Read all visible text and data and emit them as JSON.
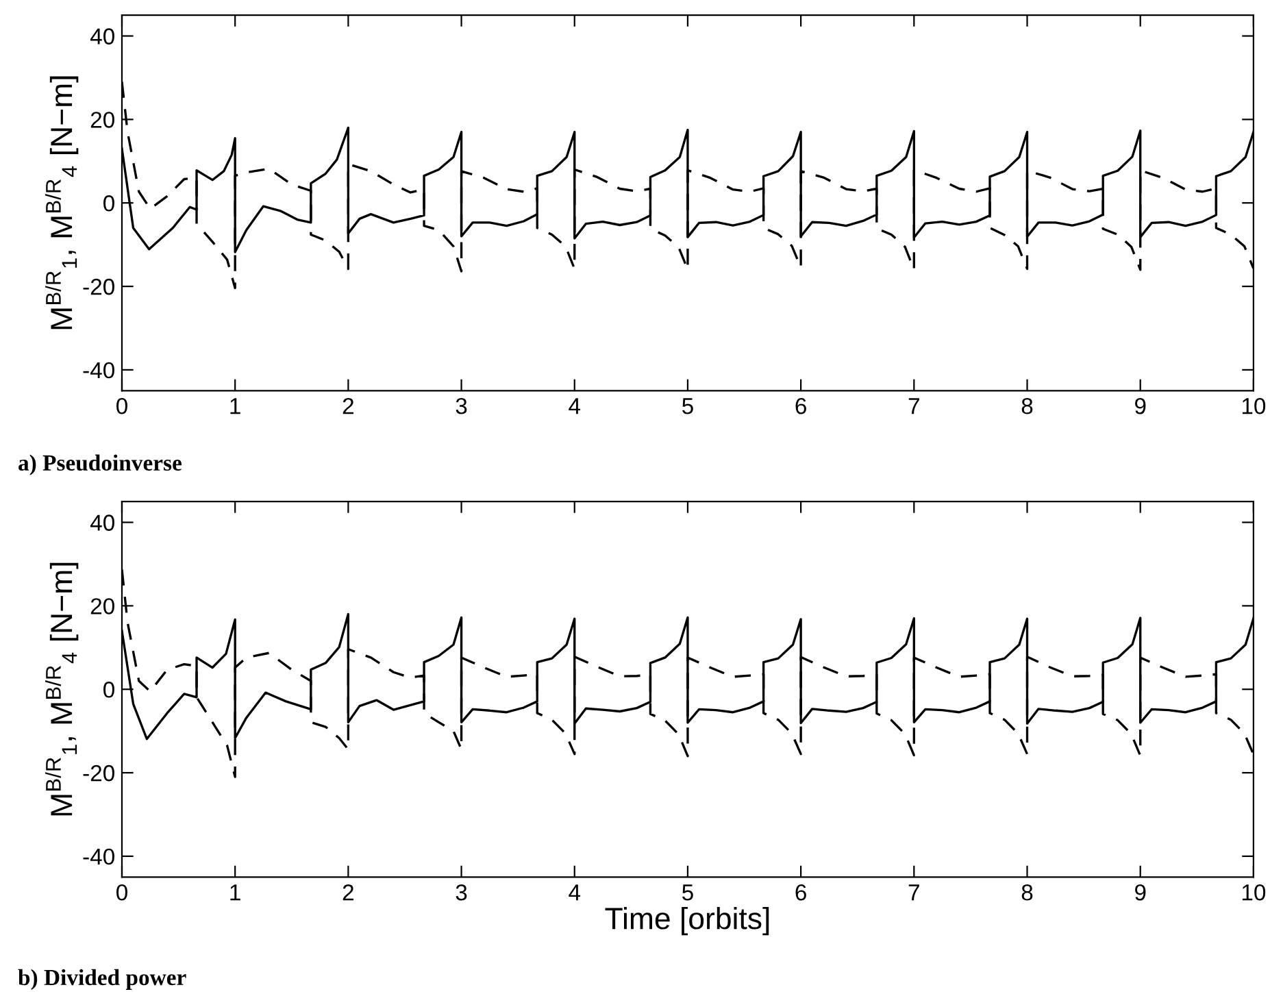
{
  "chart_data": [
    {
      "type": "line",
      "ylabel": "M$^{B/R}$$_{1}$, M$^{B/R}$$_{4}$ [N−m]",
      "annotations": [
        "a) Pseudoinverse"
      ],
      "xlim": [
        0,
        10
      ],
      "xticks": [
        0,
        1,
        2,
        3,
        4,
        5,
        6,
        7,
        8,
        9,
        10
      ],
      "ylim": [
        -45,
        45
      ],
      "yticks": [
        -40,
        -20,
        0,
        20,
        40
      ],
      "grid": false,
      "marker": "none",
      "series": [
        {
          "color": "#000000",
          "line_style": "solid",
          "x": [
            0,
            0.1,
            0.24,
            0.45,
            0.6,
            0.66,
            0.66,
            0.8,
            0.9,
            0.97,
            1,
            1,
            1.1,
            1.25,
            1.4,
            1.55,
            1.67,
            1.67,
            1.8,
            1.9,
            2,
            2,
            2.1,
            2.2,
            2.4,
            2.55,
            2.67,
            2.67,
            2.8,
            2.93,
            3,
            3,
            3.1,
            3.25,
            3.4,
            3.55,
            3.67,
            3.67,
            3.8,
            3.93,
            4,
            4,
            4.1,
            4.25,
            4.4,
            4.55,
            4.67,
            4.67,
            4.8,
            4.93,
            5,
            5,
            5.1,
            5.25,
            5.4,
            5.55,
            5.67,
            5.67,
            5.8,
            5.93,
            6,
            6,
            6.1,
            6.25,
            6.4,
            6.55,
            6.67,
            6.67,
            6.8,
            6.93,
            7,
            7,
            7.1,
            7.25,
            7.4,
            7.55,
            7.67,
            7.67,
            7.8,
            7.93,
            8,
            8,
            8.1,
            8.25,
            8.4,
            8.55,
            8.67,
            8.67,
            8.8,
            8.93,
            9,
            9,
            9.1,
            9.25,
            9.4,
            9.55,
            9.67,
            9.67,
            9.8,
            9.93,
            10
          ],
          "values": [
            13,
            -6,
            -11.1,
            -6,
            -1,
            -1.6,
            7.8,
            5.5,
            7.6,
            11.5,
            15.5,
            -11.8,
            -6.5,
            -0.8,
            -1.9,
            -4,
            -4.7,
            4.7,
            7,
            10.4,
            18,
            -7.3,
            -3.8,
            -2.7,
            -4.7,
            -3.8,
            -3,
            6.5,
            8,
            11,
            17,
            -8,
            -4.7,
            -4.7,
            -5.5,
            -4.4,
            -2.7,
            6.5,
            7.6,
            11,
            17,
            -8.5,
            -5,
            -4.5,
            -5.3,
            -4.6,
            -3,
            6.2,
            7.8,
            11,
            17.5,
            -8.2,
            -4.8,
            -4.6,
            -5.4,
            -4.5,
            -2.9,
            6.4,
            7.6,
            11.2,
            17,
            -8,
            -4.6,
            -4.8,
            -5.5,
            -4.3,
            -2.8,
            6.5,
            7.7,
            11,
            17.2,
            -8.3,
            -4.9,
            -4.5,
            -5.2,
            -4.5,
            -3,
            6.3,
            7.6,
            11,
            17,
            -8.1,
            -4.7,
            -4.7,
            -5.4,
            -4.4,
            -2.8,
            6.5,
            7.7,
            11.1,
            17.3,
            -8.2,
            -4.8,
            -4.6,
            -5.5,
            -4.5,
            -2.9,
            6.4,
            7.6,
            11,
            17
          ]
        },
        {
          "color": "#000000",
          "line_style": "dashed",
          "x": [
            0,
            0.05,
            0.15,
            0.25,
            0.4,
            0.55,
            0.66,
            0.66,
            0.8,
            0.93,
            1,
            1,
            1.1,
            1.3,
            1.5,
            1.67,
            1.67,
            1.8,
            1.92,
            2,
            2,
            2.2,
            2.4,
            2.55,
            2.67,
            2.67,
            2.8,
            2.93,
            3,
            3,
            3.2,
            3.4,
            3.55,
            3.67,
            3.67,
            3.8,
            3.92,
            4,
            4,
            4.2,
            4.4,
            4.55,
            4.67,
            4.67,
            4.8,
            4.92,
            5,
            5,
            5.2,
            5.4,
            5.55,
            5.67,
            5.67,
            5.8,
            5.92,
            6,
            6,
            6.2,
            6.4,
            6.55,
            6.67,
            6.67,
            6.8,
            6.92,
            7,
            7,
            7.2,
            7.4,
            7.55,
            7.67,
            7.67,
            7.8,
            7.92,
            8,
            8,
            8.2,
            8.4,
            8.55,
            8.67,
            8.67,
            8.8,
            8.92,
            9,
            9,
            9.2,
            9.4,
            9.55,
            9.67,
            9.67,
            9.8,
            9.92,
            10
          ],
          "values": [
            29,
            17,
            2.7,
            -1.4,
            1.6,
            5.7,
            6,
            -5,
            -9.3,
            -13.6,
            -20.4,
            6.5,
            7.3,
            8.2,
            4.4,
            2.9,
            -7.6,
            -9,
            -11.7,
            -15.8,
            9.3,
            7.6,
            4.4,
            2.5,
            3.3,
            -5.5,
            -6.5,
            -10.4,
            -16.4,
            7.6,
            6,
            3.3,
            2.7,
            3.5,
            -6,
            -7.6,
            -10.4,
            -15.8,
            8,
            6.2,
            3.4,
            2.8,
            3.4,
            -6.2,
            -7.8,
            -10.6,
            -16,
            7.8,
            6,
            3.2,
            2.7,
            3.5,
            -6,
            -7.5,
            -10.3,
            -15.5,
            7.6,
            6.1,
            3.3,
            2.8,
            3.4,
            -6.1,
            -7.6,
            -10.5,
            -16,
            7.9,
            6,
            3.4,
            2.7,
            3.5,
            -6,
            -7.7,
            -10.4,
            -15.8,
            7.7,
            6.1,
            3.3,
            2.8,
            3.4,
            -6.2,
            -7.6,
            -10.5,
            -16,
            7.8,
            6,
            3.2,
            2.7,
            3.5,
            -6,
            -7.6,
            -10.4,
            -15.7
          ]
        }
      ]
    },
    {
      "type": "line",
      "xlabel": "Time [orbits]",
      "ylabel": "M$^{B/R}$$_{1}$, M$^{B/R}$$_{4}$ [N−m]",
      "annotations": [
        "b) Divided power"
      ],
      "xlim": [
        0,
        10
      ],
      "xticks": [
        0,
        1,
        2,
        3,
        4,
        5,
        6,
        7,
        8,
        9,
        10
      ],
      "ylim": [
        -45,
        45
      ],
      "yticks": [
        -40,
        -20,
        0,
        20,
        40
      ],
      "grid": false,
      "marker": "none",
      "series": [
        {
          "color": "#000000",
          "line_style": "solid",
          "x": [
            0,
            0.1,
            0.22,
            0.4,
            0.55,
            0.66,
            0.66,
            0.8,
            0.92,
            1,
            1,
            1.1,
            1.27,
            1.45,
            1.67,
            1.67,
            1.8,
            1.92,
            2,
            2,
            2.1,
            2.25,
            2.4,
            2.67,
            2.67,
            2.8,
            2.93,
            3,
            3,
            3.1,
            3.25,
            3.4,
            3.55,
            3.67,
            3.67,
            3.8,
            3.93,
            4,
            4,
            4.1,
            4.25,
            4.4,
            4.55,
            4.67,
            4.67,
            4.8,
            4.93,
            5,
            5,
            5.1,
            5.25,
            5.4,
            5.55,
            5.67,
            5.67,
            5.8,
            5.93,
            6,
            6,
            6.1,
            6.25,
            6.4,
            6.55,
            6.67,
            6.67,
            6.8,
            6.93,
            7,
            7,
            7.1,
            7.25,
            7.4,
            7.55,
            7.67,
            7.67,
            7.8,
            7.93,
            8,
            8,
            8.1,
            8.25,
            8.4,
            8.55,
            8.67,
            8.67,
            8.8,
            8.93,
            9,
            9,
            9.1,
            9.25,
            9.4,
            9.55,
            9.67,
            9.67,
            9.8,
            9.93,
            10
          ],
          "values": [
            14,
            -3.5,
            -11.9,
            -5.7,
            -1.1,
            -1.9,
            7.6,
            5.2,
            8.5,
            16.7,
            -11.7,
            -6.8,
            -0.8,
            -2.9,
            -4.8,
            4.7,
            6.3,
            10.1,
            18,
            -7.9,
            -4,
            -2.6,
            -4.9,
            -2.9,
            6.5,
            8,
            10.7,
            17.2,
            -7.9,
            -4.8,
            -5.1,
            -5.5,
            -4.4,
            -2.9,
            6.5,
            7.4,
            10.7,
            16.9,
            -8.2,
            -4.6,
            -4.9,
            -5.3,
            -4.5,
            -3,
            6.3,
            7.6,
            10.9,
            17.2,
            -8,
            -4.8,
            -5,
            -5.5,
            -4.4,
            -2.9,
            6.5,
            7.4,
            10.7,
            16.8,
            -8.1,
            -4.7,
            -5.1,
            -5.4,
            -4.5,
            -3,
            6.4,
            7.5,
            10.8,
            17,
            -7.9,
            -4.8,
            -5,
            -5.5,
            -4.4,
            -2.9,
            6.5,
            7.4,
            10.7,
            16.9,
            -8.2,
            -4.7,
            -5.1,
            -5.4,
            -4.5,
            -3,
            6.4,
            7.5,
            10.8,
            17.1,
            -8,
            -4.8,
            -5,
            -5.5,
            -4.4,
            -2.9,
            6.5,
            7.4,
            10.7,
            17
          ]
        },
        {
          "color": "#000000",
          "line_style": "dashed",
          "x": [
            0,
            0.05,
            0.15,
            0.25,
            0.4,
            0.55,
            0.66,
            0.66,
            0.8,
            0.93,
            1,
            1,
            1.1,
            1.3,
            1.5,
            1.67,
            1.67,
            1.8,
            1.92,
            2,
            2,
            2.2,
            2.4,
            2.55,
            2.67,
            2.67,
            2.8,
            2.93,
            3,
            3,
            3.2,
            3.4,
            3.55,
            3.67,
            3.67,
            3.8,
            3.92,
            4,
            4,
            4.2,
            4.4,
            4.55,
            4.67,
            4.67,
            4.8,
            4.92,
            5,
            5,
            5.2,
            5.4,
            5.55,
            5.67,
            5.67,
            5.8,
            5.92,
            6,
            6,
            6.2,
            6.4,
            6.55,
            6.67,
            6.67,
            6.8,
            6.92,
            7,
            7,
            7.2,
            7.4,
            7.55,
            7.67,
            7.67,
            7.8,
            7.92,
            8,
            8,
            8.2,
            8.4,
            8.55,
            8.67,
            8.67,
            8.8,
            8.92,
            9,
            9,
            9.2,
            9.4,
            9.55,
            9.67,
            9.67,
            9.8,
            9.92,
            10
          ],
          "values": [
            28.7,
            16,
            2,
            -0.5,
            4.7,
            6,
            5.6,
            -1.9,
            -7.9,
            -13.5,
            -21,
            5.2,
            7.6,
            8.7,
            4.7,
            2,
            -7.9,
            -9,
            -11.7,
            -14.4,
            9.6,
            7.6,
            4.1,
            2.8,
            3.3,
            -5.7,
            -7.9,
            -10,
            -14.4,
            7.6,
            5.2,
            3,
            3.3,
            3.6,
            -5.7,
            -7.3,
            -10.6,
            -15.5,
            7.8,
            5.4,
            3.1,
            3.2,
            3.5,
            -5.9,
            -7.5,
            -10.8,
            -16,
            7.6,
            5.2,
            3,
            3.3,
            3.6,
            -5.7,
            -7.3,
            -10.6,
            -15.5,
            7.7,
            5.3,
            3.1,
            3.2,
            3.5,
            -5.8,
            -7.4,
            -10.7,
            -15.8,
            7.6,
            5.2,
            3,
            3.3,
            3.6,
            -5.7,
            -7.3,
            -10.6,
            -15.5,
            7.8,
            5.3,
            3.1,
            3.2,
            3.5,
            -5.9,
            -7.4,
            -10.7,
            -15.9,
            7.6,
            5.2,
            3,
            3.3,
            3.6,
            -5.7,
            -7.3,
            -10.6,
            -15.6
          ]
        }
      ]
    }
  ]
}
